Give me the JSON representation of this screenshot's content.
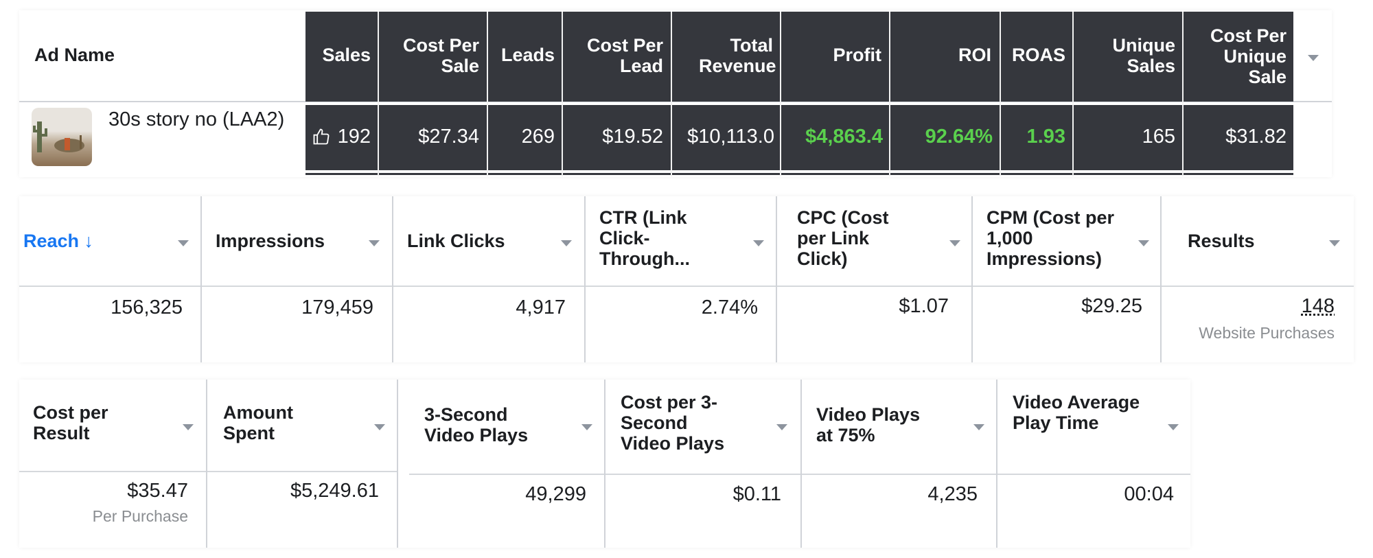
{
  "colors": {
    "dark_header": "#35373d",
    "positive": "#5ad04d",
    "link_blue": "#1877f2",
    "subtext": "#8a8d91"
  },
  "table1": {
    "ad_name_header": "Ad Name",
    "headers": [
      "Sales",
      "Cost Per Sale",
      "Leads",
      "Cost Per Lead",
      "Total Revenue",
      "Profit",
      "ROI",
      "ROAS",
      "Unique Sales",
      "Cost Per Unique Sale"
    ],
    "row": {
      "ad_name": "30s story no (LAA2)",
      "thumbnail_icon": "desert-photo-thumbnail",
      "sales_icon": "thumbs-up-icon",
      "values": [
        "192",
        "$27.34",
        "269",
        "$19.52",
        "$10,113.0",
        "$4,863.4",
        "92.64%",
        "1.93",
        "165",
        "$31.82"
      ]
    }
  },
  "table2": {
    "sort_header": "Reach ↓",
    "headers": [
      "Impressions",
      "Link Clicks",
      "CTR (Link Click-Through...",
      "CPC (Cost per Link Click)",
      "CPM (Cost per 1,000 Impressions)",
      "Results"
    ],
    "values": [
      "156,325",
      "179,459",
      "4,917",
      "2.74%",
      "$1.07",
      "$29.25",
      "148"
    ],
    "results_sub": "Website Purchases"
  },
  "table3": {
    "headers": [
      "Cost per Result",
      "Amount Spent",
      "3-Second Video Plays",
      "Cost per 3-Second Video Plays",
      "Video Plays at 75%",
      "Video Average Play Time"
    ],
    "values": [
      "$35.47",
      "$5,249.61",
      "49,299",
      "$0.11",
      "4,235",
      "00:04"
    ],
    "cost_sub": "Per Purchase"
  }
}
